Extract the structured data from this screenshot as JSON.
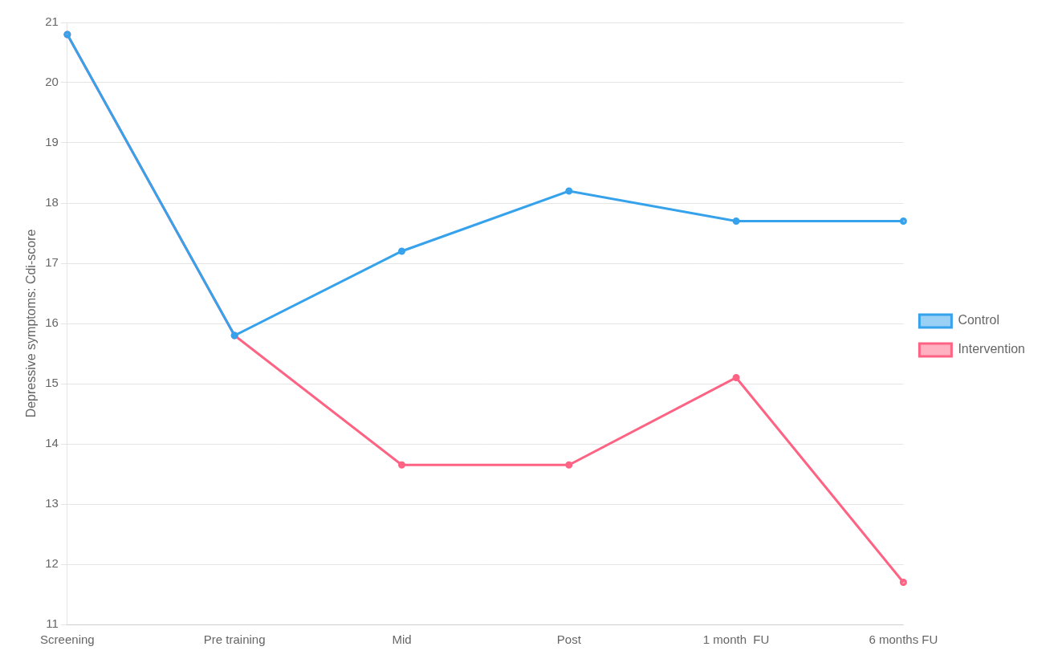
{
  "chart_data": {
    "type": "line",
    "categories": [
      "Screening",
      "Pre training",
      "Mid",
      "Post",
      "1 month  FU",
      "6 months FU"
    ],
    "series": [
      {
        "name": "Control",
        "values": [
          20.8,
          15.8,
          17.2,
          18.2,
          17.7,
          17.7
        ]
      },
      {
        "name": "Intervention",
        "values": [
          20.8,
          15.8,
          13.65,
          13.65,
          15.1,
          11.7
        ]
      }
    ],
    "ylabel": "Depressive symptoms: Cdi-score",
    "ylim": [
      11,
      21
    ],
    "yticks": [
      11,
      12,
      13,
      14,
      15,
      16,
      17,
      18,
      19,
      20,
      21
    ],
    "grid": true,
    "legend": "right"
  }
}
